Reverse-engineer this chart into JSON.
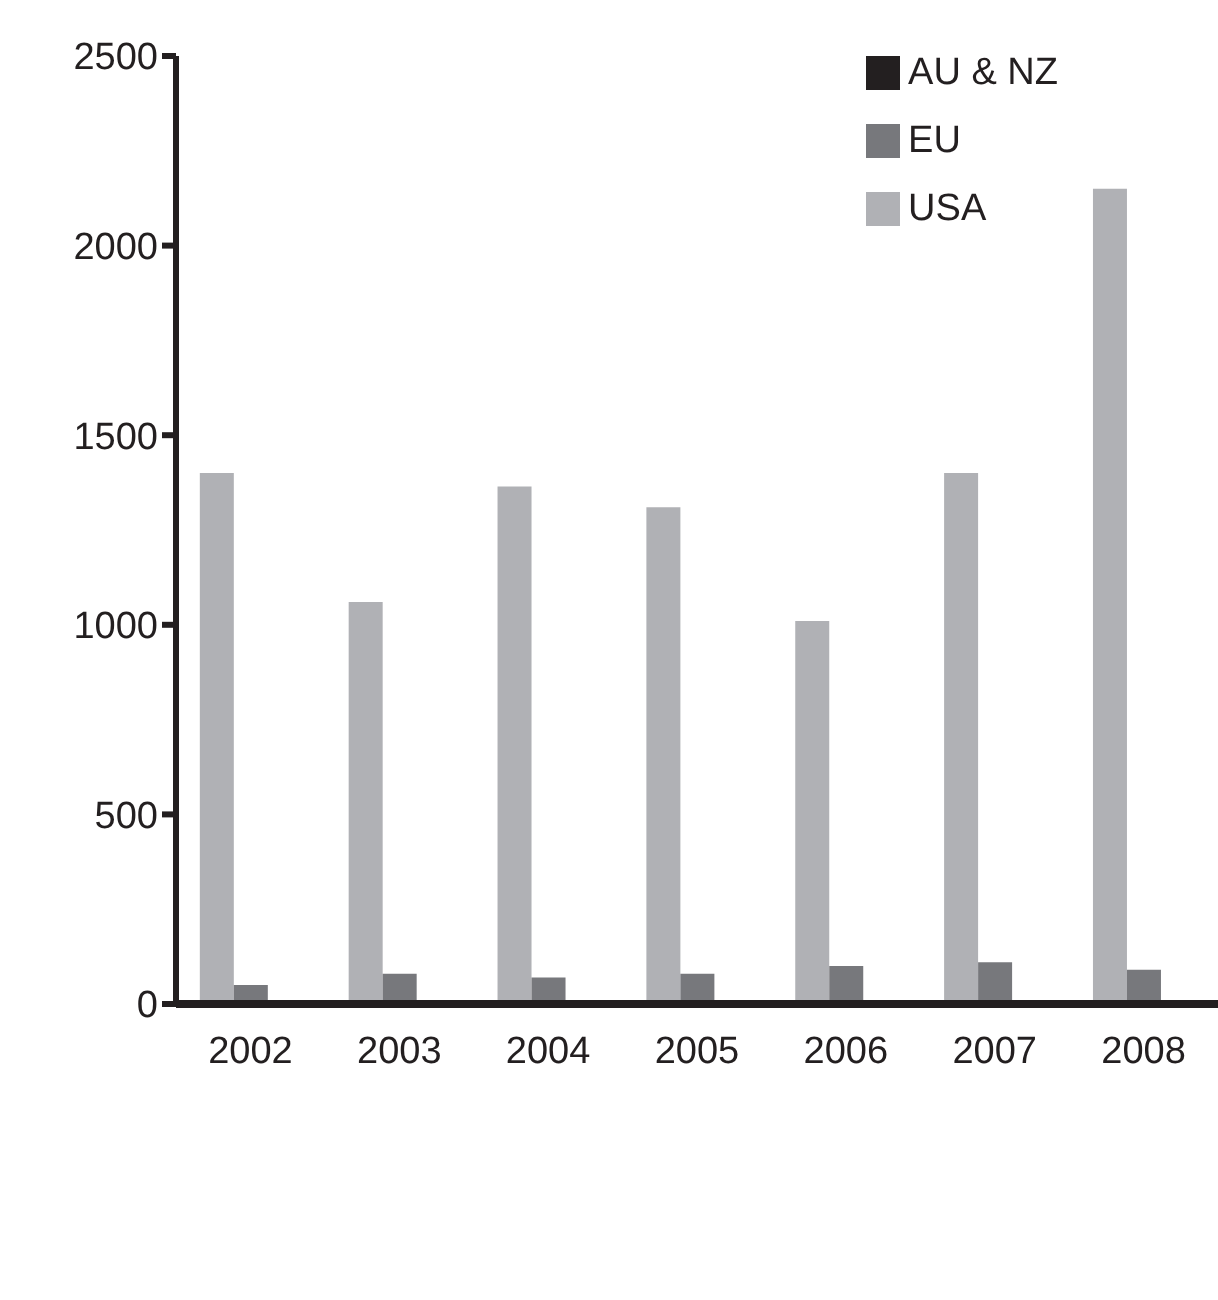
{
  "chart_data": {
    "type": "bar",
    "categories": [
      "2002",
      "2003",
      "2004",
      "2005",
      "2006",
      "2007",
      "2008"
    ],
    "series": [
      {
        "name": "USA",
        "color": "#b0b1b5",
        "values": [
          1400,
          1060,
          1365,
          1310,
          1010,
          1400,
          2150
        ]
      },
      {
        "name": "EU",
        "color": "#77787c",
        "values": [
          50,
          80,
          70,
          80,
          100,
          110,
          90
        ]
      },
      {
        "name": "AU & NZ",
        "color": "#231f20",
        "values": [
          5,
          5,
          5,
          5,
          5,
          5,
          5
        ]
      }
    ],
    "ylim": [
      0,
      2500
    ],
    "yticks": [
      0,
      500,
      1000,
      1500,
      2000,
      2500
    ],
    "grid": false,
    "legend": "top right"
  }
}
